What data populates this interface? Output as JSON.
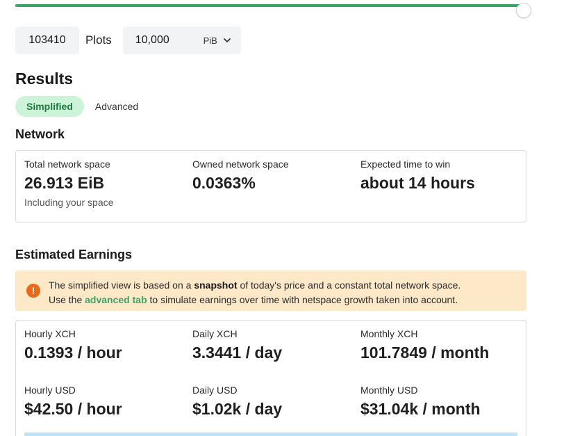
{
  "slider": {
    "value_fraction": 0.98,
    "accent": "#3aa564"
  },
  "inputs": {
    "plots_value": "103410",
    "plots_label": "Plots",
    "space_value": "10,000",
    "space_unit": "PiB"
  },
  "results": {
    "title": "Results",
    "tabs": [
      {
        "label": "Simplified",
        "active": true
      },
      {
        "label": "Advanced",
        "active": false
      }
    ]
  },
  "network": {
    "title": "Network",
    "stats": [
      {
        "label": "Total network space",
        "value": "26.913 EiB",
        "sub": "Including your space"
      },
      {
        "label": "Owned network space",
        "value": "0.0363%"
      },
      {
        "label": "Expected time to win",
        "value": "about 14 hours"
      }
    ]
  },
  "earnings": {
    "title": "Estimated Earnings",
    "alert": {
      "line1_pre": "The simplified view is based on a ",
      "line1_bold": "snapshot",
      "line1_post": " of today's price and a constant total network space.",
      "line2_pre": "Use the ",
      "line2_link": "advanced tab",
      "line2_post": " to simulate earnings over time with netspace growth taken into account.",
      "icon": "!"
    },
    "stats": [
      {
        "label": "Hourly XCH",
        "value": "0.1393 / hour"
      },
      {
        "label": "Daily XCH",
        "value": "3.3441 / day"
      },
      {
        "label": "Monthly XCH",
        "value": "101.7849 / month"
      },
      {
        "label": "Hourly USD",
        "value": "$42.50 / hour"
      },
      {
        "label": "Daily USD",
        "value": "$1.02k / day"
      },
      {
        "label": "Monthly USD",
        "value": "$31.04k / month"
      }
    ]
  }
}
